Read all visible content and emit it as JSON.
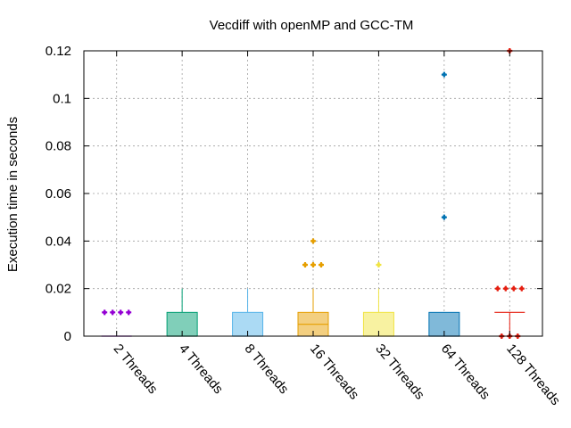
{
  "chart_data": {
    "type": "box",
    "title": "Vecdiff with openMP and GCC-TM",
    "xlabel": "",
    "ylabel": "Execution time in seconds",
    "ylim": [
      0,
      0.12
    ],
    "yticks": [
      0,
      0.02,
      0.04,
      0.06,
      0.08,
      0.1,
      0.12
    ],
    "ytick_labels": [
      "0",
      "0.02",
      "0.04",
      "0.06",
      "0.08",
      "0.1",
      "0.12"
    ],
    "grid": true,
    "legend": "none",
    "categories": [
      "2 Threads",
      "4 Threads",
      "8 Threads",
      "16 Threads",
      "32 Threads",
      "64 Threads",
      "128 Threads"
    ],
    "boxes": [
      {
        "category": "2 Threads",
        "min": 0,
        "q1": 0,
        "median": 0,
        "q3": 0,
        "max": 0,
        "outliers": [
          0.01,
          0.01,
          0.01,
          0.01
        ],
        "color": "#9400d3"
      },
      {
        "category": "4 Threads",
        "min": 0,
        "q1": 0,
        "median": 0,
        "q3": 0.01,
        "max": 0.02,
        "outliers": [],
        "color": "#009e73"
      },
      {
        "category": "8 Threads",
        "min": 0,
        "q1": 0,
        "median": 0,
        "q3": 0.01,
        "max": 0.02,
        "outliers": [],
        "color": "#56b4e9"
      },
      {
        "category": "16 Threads",
        "min": 0,
        "q1": 0,
        "median": 0.005,
        "q3": 0.01,
        "max": 0.02,
        "outliers": [
          0.03,
          0.03,
          0.03,
          0.04
        ],
        "color": "#e69f00"
      },
      {
        "category": "32 Threads",
        "min": 0,
        "q1": 0,
        "median": 0,
        "q3": 0.01,
        "max": 0.02,
        "outliers": [
          0.03
        ],
        "color": "#f0e442"
      },
      {
        "category": "64 Threads",
        "min": 0,
        "q1": 0,
        "median": 0,
        "q3": 0.01,
        "max": 0.01,
        "outliers": [
          0.05,
          0.11
        ],
        "color": "#0072b2"
      },
      {
        "category": "128 Threads",
        "min": 0,
        "q1": 0.01,
        "median": 0.01,
        "q3": 0.01,
        "max": 0.01,
        "outliers": [
          0,
          0,
          0,
          0.02,
          0.02,
          0.02,
          0.02,
          0.12
        ],
        "color": "#e51e10"
      }
    ]
  }
}
